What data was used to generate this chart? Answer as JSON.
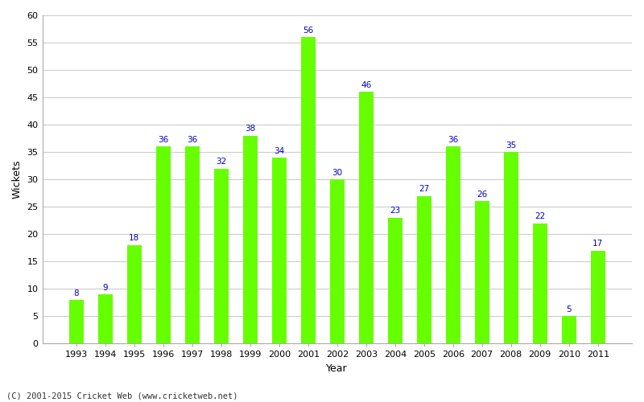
{
  "years": [
    1993,
    1994,
    1995,
    1996,
    1997,
    1998,
    1999,
    2000,
    2001,
    2002,
    2003,
    2004,
    2005,
    2006,
    2007,
    2008,
    2009,
    2010,
    2011
  ],
  "wickets": [
    8,
    9,
    18,
    36,
    36,
    32,
    38,
    34,
    56,
    30,
    46,
    23,
    27,
    36,
    26,
    35,
    22,
    5,
    17
  ],
  "bar_color": "#66ff00",
  "bar_edge_color": "#66ff00",
  "label_color": "#0000cc",
  "label_fontsize": 7.5,
  "xlabel": "Year",
  "ylabel": "Wickets",
  "ylim": [
    0,
    60
  ],
  "yticks": [
    0,
    5,
    10,
    15,
    20,
    25,
    30,
    35,
    40,
    45,
    50,
    55,
    60
  ],
  "background_color": "#ffffff",
  "plot_area_color": "#ffffff",
  "grid_color": "#cccccc",
  "footer": "(C) 2001-2015 Cricket Web (www.cricketweb.net)"
}
